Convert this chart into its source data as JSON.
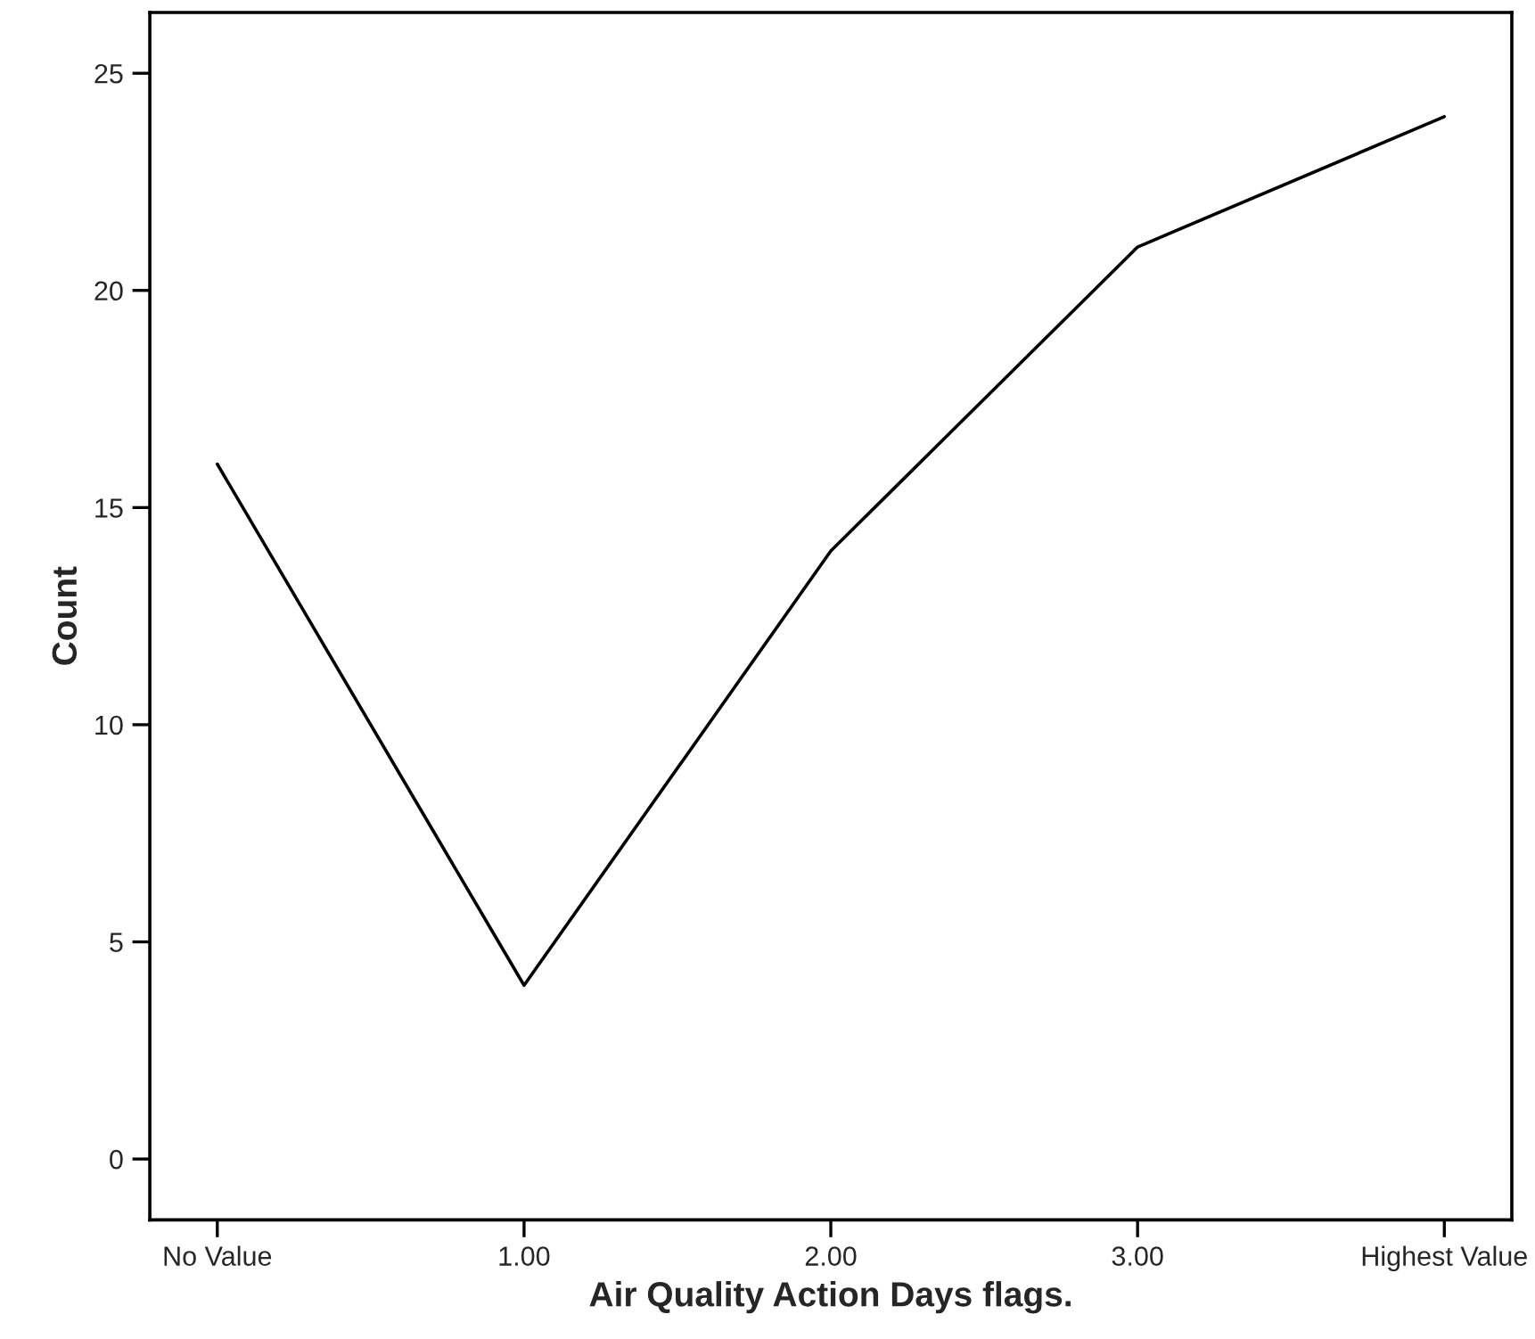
{
  "chart_data": {
    "type": "line",
    "xlabel": "Air Quality Action Days flags.",
    "ylabel": "Count",
    "categories": [
      "No Value",
      "1.00",
      "2.00",
      "3.00",
      "Highest Value"
    ],
    "series": [
      {
        "color": "#000000",
        "values": [
          16,
          4,
          14,
          21,
          24
        ]
      }
    ],
    "ylim": [
      -1.4,
      26.4
    ],
    "yticks": [
      0,
      5,
      10,
      15,
      20,
      25
    ],
    "grid": false,
    "marker": "none",
    "line_style": "solid"
  }
}
